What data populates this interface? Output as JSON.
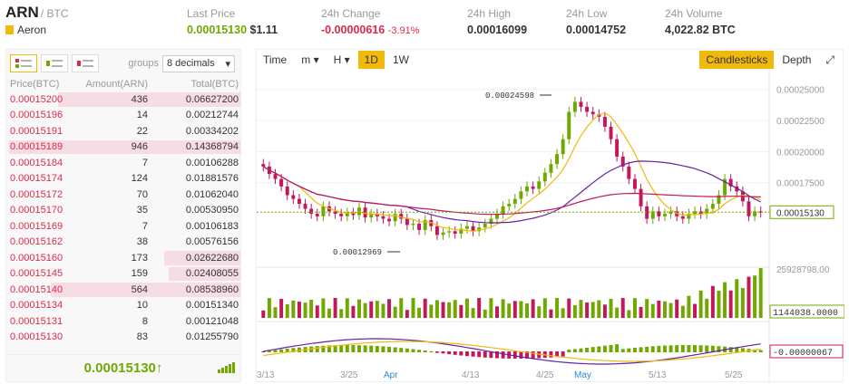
{
  "pair": {
    "symbol": "ARN",
    "quote": "/ BTC",
    "name": "Aeron"
  },
  "stats": {
    "last_price_label": "Last Price",
    "last_price": "0.00015130",
    "last_price_usd": "$1.11",
    "change_label": "24h Change",
    "change": "-0.00000616",
    "change_pct": "-3.91%",
    "high_label": "24h High",
    "high": "0.00016099",
    "low_label": "24h Low",
    "low": "0.00014752",
    "volume_label": "24h Volume",
    "volume": "4,022.82 BTC"
  },
  "orderbook": {
    "groups_label": "groups",
    "groups_value": "8 decimals",
    "headers": [
      "Price(BTC)",
      "Amount(ARN)",
      "Total(BTC)"
    ],
    "rows": [
      {
        "price": "0.00015200",
        "amount": "436",
        "total": "0.06627200",
        "depth": 0.79
      },
      {
        "price": "0.00015196",
        "amount": "14",
        "total": "0.00212744",
        "depth": 0.0
      },
      {
        "price": "0.00015191",
        "amount": "22",
        "total": "0.00334202",
        "depth": 0.0
      },
      {
        "price": "0.00015189",
        "amount": "946",
        "total": "0.14368794",
        "depth": 1.0
      },
      {
        "price": "0.00015184",
        "amount": "7",
        "total": "0.00106288",
        "depth": 0.0
      },
      {
        "price": "0.00015174",
        "amount": "124",
        "total": "0.01881576",
        "depth": 0.0
      },
      {
        "price": "0.00015172",
        "amount": "70",
        "total": "0.01062040",
        "depth": 0.0
      },
      {
        "price": "0.00015170",
        "amount": "35",
        "total": "0.00530950",
        "depth": 0.0
      },
      {
        "price": "0.00015169",
        "amount": "7",
        "total": "0.00106183",
        "depth": 0.0
      },
      {
        "price": "0.00015162",
        "amount": "38",
        "total": "0.00576156",
        "depth": 0.0
      },
      {
        "price": "0.00015160",
        "amount": "173",
        "total": "0.02622680",
        "depth": 0.33
      },
      {
        "price": "0.00015145",
        "amount": "159",
        "total": "0.02408055",
        "depth": 0.31
      },
      {
        "price": "0.00015140",
        "amount": "564",
        "total": "0.08538960",
        "depth": 0.82
      },
      {
        "price": "0.00015134",
        "amount": "10",
        "total": "0.00151340",
        "depth": 0.0
      },
      {
        "price": "0.00015131",
        "amount": "8",
        "total": "0.00121048",
        "depth": 0.0
      },
      {
        "price": "0.00015130",
        "amount": "83",
        "total": "0.01255790",
        "depth": 0.0
      }
    ],
    "last_price": "0.00015130",
    "arrow": "↑"
  },
  "chart_toolbar": {
    "time": "Time",
    "minutes": "m",
    "hours": "H",
    "day": "1D",
    "week": "1W",
    "candles": "Candlesticks",
    "depth": "Depth"
  },
  "chart_data": {
    "type": "candlestick",
    "price_axis": [
      "0.00025000",
      "0.00022500",
      "0.00020000",
      "0.00017500"
    ],
    "last_price_tag": "0.00015130",
    "max_label": "0.00024598",
    "min_label": "0.00012969",
    "volume_axis": "25928798.00",
    "volume_tag": "1144038.0000",
    "macd_tag": "-0.00000067",
    "x_ticks": [
      "3/13",
      "3/25",
      "Apr",
      "4/13",
      "4/25",
      "May",
      "5/13",
      "5/25"
    ],
    "colors": {
      "up": "#70a800",
      "down": "#c2185b",
      "ma_fast": "#f0b90b",
      "ma_mid": "#6a1fa8",
      "ma_slow": "#c2185b"
    }
  }
}
